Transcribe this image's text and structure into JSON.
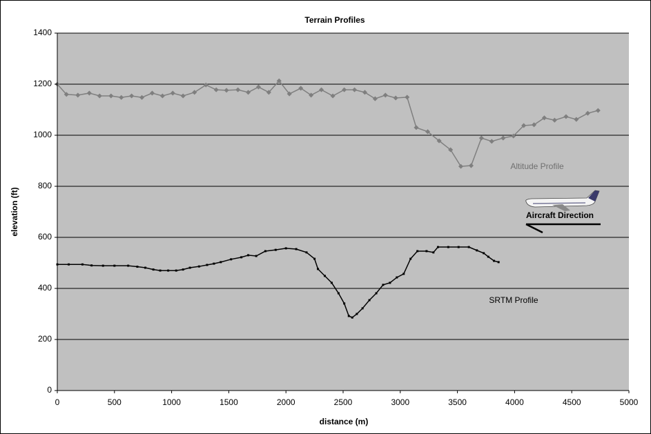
{
  "chart_data": {
    "type": "line",
    "title": "Terrain Profiles",
    "x_label": "distance (m)",
    "y_label": "elevation (ft)",
    "xlim": [
      0,
      5000
    ],
    "ylim": [
      0,
      1400
    ],
    "xticks": [
      0,
      500,
      1000,
      1500,
      2000,
      2500,
      3000,
      3500,
      4000,
      4500,
      5000
    ],
    "yticks": [
      0,
      200,
      400,
      600,
      800,
      1000,
      1200,
      1400
    ],
    "grid": true,
    "annotations": [
      "Aircraft Direction"
    ],
    "series": [
      {
        "name": "Altitude Profile",
        "color": "#7f7f7f",
        "x": [
          0,
          80,
          180,
          280,
          370,
          470,
          560,
          650,
          740,
          830,
          920,
          1010,
          1100,
          1200,
          1300,
          1390,
          1480,
          1580,
          1670,
          1760,
          1850,
          1940,
          2030,
          2130,
          2220,
          2310,
          2410,
          2510,
          2600,
          2690,
          2780,
          2870,
          2960,
          3060,
          3140,
          3240,
          3340,
          3440,
          3530,
          3620,
          3710,
          3800,
          3900,
          3990,
          4080,
          4170,
          4260,
          4350,
          4450,
          4540,
          4640,
          4730
        ],
        "values": [
          1200,
          1160,
          1157,
          1165,
          1154,
          1154,
          1148,
          1154,
          1148,
          1165,
          1154,
          1165,
          1154,
          1168,
          1197,
          1178,
          1176,
          1178,
          1168,
          1189,
          1168,
          1213,
          1162,
          1184,
          1157,
          1178,
          1154,
          1178,
          1178,
          1168,
          1143,
          1157,
          1146,
          1149,
          1030,
          1014,
          978,
          943,
          878,
          881,
          989,
          976,
          989,
          997,
          1038,
          1041,
          1068,
          1059,
          1073,
          1062,
          1086,
          1097
        ]
      },
      {
        "name": "SRTM Profile",
        "color": "#000000",
        "x": [
          0,
          100,
          220,
          300,
          400,
          500,
          620,
          700,
          770,
          840,
          900,
          970,
          1040,
          1100,
          1160,
          1240,
          1310,
          1370,
          1430,
          1520,
          1610,
          1670,
          1740,
          1820,
          1910,
          2000,
          2090,
          2180,
          2250,
          2280,
          2340,
          2400,
          2460,
          2510,
          2550,
          2580,
          2620,
          2670,
          2730,
          2790,
          2850,
          2910,
          2970,
          3030,
          3090,
          3150,
          3230,
          3290,
          3330,
          3420,
          3510,
          3600,
          3670,
          3730,
          3770,
          3820,
          3860
        ],
        "values": [
          494,
          494,
          494,
          490,
          489,
          489,
          489,
          485,
          481,
          474,
          470,
          470,
          470,
          474,
          481,
          486,
          492,
          497,
          503,
          514,
          522,
          530,
          527,
          546,
          551,
          557,
          554,
          541,
          516,
          476,
          449,
          422,
          381,
          341,
          292,
          286,
          300,
          322,
          354,
          381,
          414,
          422,
          443,
          457,
          516,
          546,
          546,
          541,
          562,
          562,
          562,
          562,
          549,
          538,
          524,
          508,
          503
        ]
      }
    ]
  }
}
